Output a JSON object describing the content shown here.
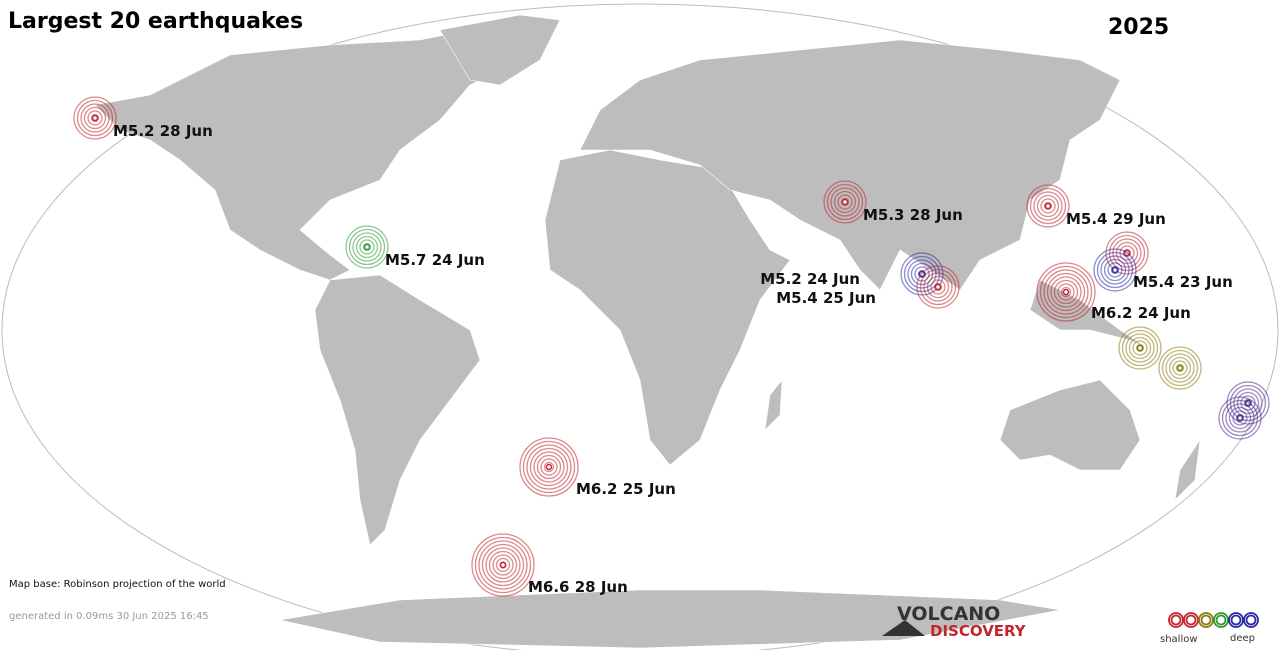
{
  "header": {
    "title": "Largest 20 earthquakes",
    "year": "2025"
  },
  "events": [
    {
      "label": "M5.2 28 Jun"
    },
    {
      "label": "M5.7 24 Jun"
    },
    {
      "label": "M5.3 28 Jun"
    },
    {
      "label": "M5.4 29 Jun"
    },
    {
      "label": "M5.4 23 Jun"
    },
    {
      "label": "M5.2 24 Jun"
    },
    {
      "label": "M5.4 25 Jun"
    },
    {
      "label": "M6.2 24 Jun"
    },
    {
      "label": "M6.2 25 Jun"
    },
    {
      "label": "M6.6 28 Jun"
    }
  ],
  "footer": {
    "map_base": "Map base: Robinson projection of the world",
    "generated": "generated in 0.09ms 30 Jun 2025 16:45"
  },
  "logo": {
    "line1": "VOLCANO",
    "line2": "DISCOVERY"
  },
  "legend": {
    "shallow": "shallow",
    "deep": "deep"
  }
}
